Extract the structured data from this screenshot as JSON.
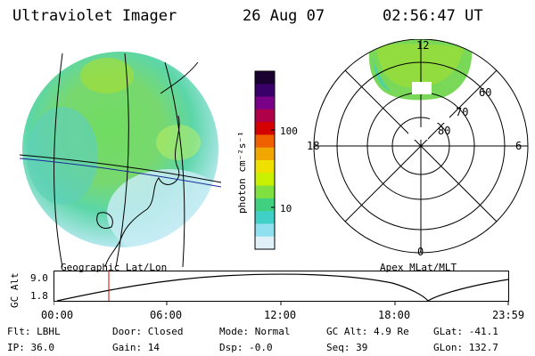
{
  "header": {
    "title": "Ultraviolet Imager",
    "date": "26 Aug 07",
    "time": "02:56:47 UT"
  },
  "colorbar": {
    "label": "photon cm⁻²s⁻¹",
    "ticks": [
      "100",
      "10"
    ],
    "colors": [
      "#1a0030",
      "#3a006a",
      "#7a0088",
      "#b0004a",
      "#d40000",
      "#f06000",
      "#f0a800",
      "#f0e000",
      "#c8f000",
      "#80e040",
      "#40d080",
      "#40d0c8",
      "#90e0f0",
      "#e0f0f8"
    ]
  },
  "polar": {
    "labels": {
      "top": "12",
      "bottom": "0",
      "left": "18",
      "right": "6"
    },
    "rings": [
      "60",
      "70",
      "80"
    ]
  },
  "strip": {
    "left_label": "Geographic Lat/Lon",
    "right_label": "Apex MLat/MLT",
    "y_title": "GC Alt",
    "y_ticks": [
      "9.0",
      "1.8"
    ],
    "x_ticks": [
      "00:00",
      "06:00",
      "12:00",
      "18:00",
      "23:59"
    ]
  },
  "info": {
    "row1": {
      "flt": "Flt: LBHL",
      "door": "Door: Closed",
      "mode": "Mode: Normal",
      "gcalt": "GC Alt: 4.9 Re",
      "glat": "GLat: -41.1"
    },
    "row2": {
      "ip": "IP: 36.0",
      "gain": "Gain: 14",
      "dsp": "Dsp:   -0.0",
      "seq": "Seq: 39",
      "glon": "GLon: 132.7"
    }
  }
}
